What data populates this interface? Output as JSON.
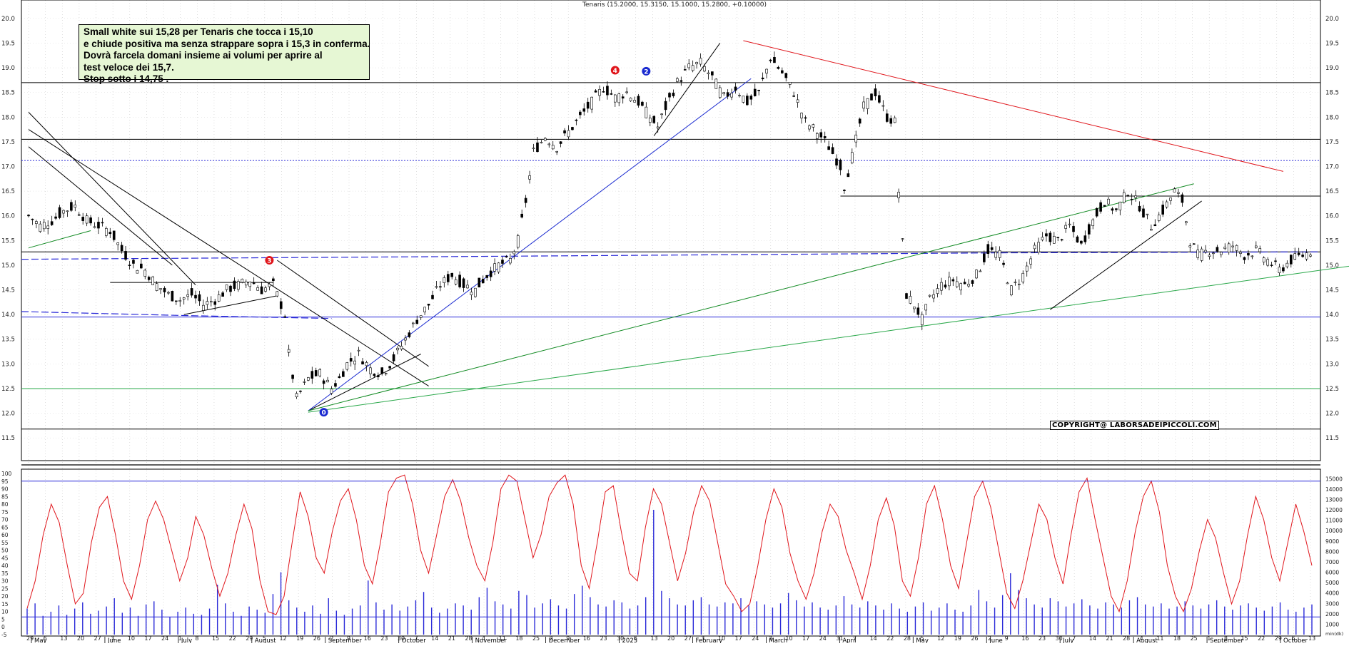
{
  "chart_data": [
    {
      "type": "candlestick",
      "title": "Tenaris (15.2000, 15.3150, 15.1000, 15.2800, +0.10000)",
      "y_ticks": [
        "20.0",
        "19.5",
        "19.0",
        "18.5",
        "18.0",
        "17.5",
        "17.0",
        "16.5",
        "16.0",
        "15.5",
        "15.0",
        "14.5",
        "14.0",
        "13.5",
        "13.0",
        "12.5",
        "12.0",
        "11.5"
      ],
      "ylim": [
        11.3,
        20.2
      ],
      "x_labels": [
        "May",
        "June",
        "July",
        "August",
        "September",
        "October",
        "November",
        "December",
        "2025",
        "February",
        "March",
        "April",
        "May",
        "June",
        "July",
        "August",
        "September",
        "October"
      ],
      "x_day_ticks": [
        "29",
        "6",
        "13",
        "20",
        "27",
        "3",
        "10",
        "17",
        "24",
        "1",
        "8",
        "15",
        "22",
        "29",
        "5",
        "12",
        "19",
        "26",
        "2",
        "9",
        "16",
        "23",
        "30",
        "7",
        "14",
        "21",
        "28",
        "4",
        "11",
        "18",
        "25",
        "2",
        "9",
        "16",
        "23",
        "30",
        "6",
        "13",
        "20",
        "27",
        "3",
        "10",
        "17",
        "24",
        "3",
        "10",
        "17",
        "24",
        "31",
        "7",
        "14",
        "22",
        "28",
        "5",
        "12",
        "19",
        "26",
        "2",
        "9",
        "16",
        "23",
        "30",
        "7",
        "14",
        "21",
        "28",
        "4",
        "11",
        "18",
        "25",
        "1",
        "8",
        "15",
        "22",
        "29",
        "6",
        "13"
      ],
      "close_path": [
        [
          0,
          16.0
        ],
        [
          3,
          15.8
        ],
        [
          6,
          15.9
        ],
        [
          9,
          16.1
        ],
        [
          12,
          16.2
        ],
        [
          15,
          15.9
        ],
        [
          18,
          15.8
        ],
        [
          21,
          15.7
        ],
        [
          24,
          15.3
        ],
        [
          27,
          15.0
        ],
        [
          30,
          14.9
        ],
        [
          33,
          14.6
        ],
        [
          36,
          14.4
        ],
        [
          39,
          14.3
        ],
        [
          42,
          14.4
        ],
        [
          45,
          14.2
        ],
        [
          48,
          14.3
        ],
        [
          51,
          14.5
        ],
        [
          54,
          14.6
        ],
        [
          57,
          14.7
        ],
        [
          60,
          14.5
        ],
        [
          63,
          14.6
        ],
        [
          66,
          14.0
        ],
        [
          67,
          13.2
        ],
        [
          69,
          12.3
        ],
        [
          72,
          12.7
        ],
        [
          75,
          12.8
        ],
        [
          78,
          12.5
        ],
        [
          80,
          12.7
        ],
        [
          82,
          13.0
        ],
        [
          85,
          13.2
        ],
        [
          88,
          12.9
        ],
        [
          91,
          12.8
        ],
        [
          94,
          13.1
        ],
        [
          97,
          13.5
        ],
        [
          100,
          13.9
        ],
        [
          103,
          14.2
        ],
        [
          106,
          14.6
        ],
        [
          109,
          14.8
        ],
        [
          112,
          14.6
        ],
        [
          115,
          14.5
        ],
        [
          118,
          14.8
        ],
        [
          121,
          15.0
        ],
        [
          124,
          15.1
        ],
        [
          126,
          15.5
        ],
        [
          128,
          16.3
        ],
        [
          130,
          17.3
        ],
        [
          133,
          17.6
        ],
        [
          136,
          17.4
        ],
        [
          139,
          17.7
        ],
        [
          142,
          18.0
        ],
        [
          145,
          18.3
        ],
        [
          148,
          18.6
        ],
        [
          151,
          18.4
        ],
        [
          154,
          18.5
        ],
        [
          157,
          18.3
        ],
        [
          160,
          18.0
        ],
        [
          162,
          17.8
        ],
        [
          164,
          18.2
        ],
        [
          167,
          18.7
        ],
        [
          170,
          19.0
        ],
        [
          173,
          19.1
        ],
        [
          176,
          18.8
        ],
        [
          179,
          18.4
        ],
        [
          182,
          18.6
        ],
        [
          185,
          18.3
        ],
        [
          188,
          18.5
        ],
        [
          191,
          19.2
        ],
        [
          194,
          18.9
        ],
        [
          197,
          18.5
        ],
        [
          200,
          17.9
        ],
        [
          203,
          17.7
        ],
        [
          206,
          17.4
        ],
        [
          209,
          17.0
        ],
        [
          210,
          16.6
        ],
        [
          212,
          17.2
        ],
        [
          215,
          18.2
        ],
        [
          218,
          18.5
        ],
        [
          221,
          18.0
        ],
        [
          223,
          17.9
        ],
        [
          224,
          16.5
        ],
        [
          226,
          14.4
        ],
        [
          228,
          14.2
        ],
        [
          230,
          13.9
        ],
        [
          232,
          14.3
        ],
        [
          235,
          14.6
        ],
        [
          238,
          14.7
        ],
        [
          241,
          14.6
        ],
        [
          244,
          14.8
        ],
        [
          247,
          15.3
        ],
        [
          250,
          15.2
        ],
        [
          253,
          14.5
        ],
        [
          256,
          14.8
        ],
        [
          259,
          15.3
        ],
        [
          262,
          15.6
        ],
        [
          265,
          15.5
        ],
        [
          268,
          15.8
        ],
        [
          271,
          15.4
        ],
        [
          274,
          15.9
        ],
        [
          277,
          16.3
        ],
        [
          280,
          16.1
        ],
        [
          283,
          16.5
        ],
        [
          286,
          16.2
        ],
        [
          289,
          15.8
        ],
        [
          292,
          16.1
        ],
        [
          295,
          16.5
        ],
        [
          297,
          16.3
        ],
        [
          299,
          15.5
        ],
        [
          301,
          15.2
        ],
        [
          304,
          15.3
        ],
        [
          307,
          15.3
        ],
        [
          310,
          15.4
        ],
        [
          313,
          15.2
        ],
        [
          316,
          15.3
        ],
        [
          319,
          15.1
        ],
        [
          322,
          14.9
        ],
        [
          325,
          15.1
        ],
        [
          328,
          15.2
        ],
        [
          330,
          15.28
        ]
      ],
      "n_bars": 330,
      "oscillator": {
        "y_ticks": [
          "100",
          "95",
          "90",
          "85",
          "80",
          "75",
          "70",
          "65",
          "60",
          "55",
          "50",
          "45",
          "40",
          "35",
          "30",
          "25",
          "20",
          "15",
          "10",
          "5",
          "0",
          "-5"
        ],
        "ylim": [
          -5,
          100
        ],
        "reference_level": 95,
        "color": "#e0161c",
        "values": [
          12,
          30,
          60,
          80,
          68,
          40,
          15,
          22,
          55,
          78,
          85,
          60,
          30,
          18,
          40,
          70,
          82,
          70,
          50,
          30,
          45,
          72,
          60,
          38,
          20,
          35,
          60,
          80,
          64,
          30,
          10,
          8,
          20,
          55,
          88,
          72,
          45,
          35,
          62,
          82,
          90,
          70,
          40,
          28,
          55,
          88,
          97,
          99,
          80,
          50,
          35,
          60,
          85,
          96,
          82,
          58,
          40,
          30,
          55,
          90,
          99,
          95,
          70,
          45,
          60,
          85,
          94,
          99,
          80,
          40,
          25,
          55,
          88,
          92,
          62,
          35,
          30,
          65,
          90,
          80,
          55,
          30,
          48,
          75,
          92,
          82,
          55,
          28,
          20,
          10,
          15,
          40,
          70,
          90,
          78,
          48,
          30,
          18,
          35,
          62,
          80,
          72,
          50,
          35,
          18,
          40,
          70,
          84,
          66,
          30,
          20,
          45,
          80,
          92,
          70,
          40,
          25,
          55,
          85,
          95,
          78,
          50,
          22,
          12,
          30,
          55,
          80,
          70,
          45,
          28,
          60,
          88,
          97,
          70,
          45,
          20,
          10,
          30,
          62,
          85,
          95,
          75,
          40,
          20,
          10,
          25,
          50,
          70,
          58,
          35,
          15,
          30,
          60,
          85,
          70,
          45,
          30,
          55,
          80,
          62,
          40
        ]
      },
      "volume": {
        "y_ticks": [
          "15000",
          "14000",
          "13000",
          "12000",
          "11000",
          "10000",
          "9000",
          "8000",
          "7000",
          "6000",
          "5000",
          "4000",
          "3000",
          "2000",
          "1000"
        ],
        "ylim": [
          0,
          15500
        ],
        "reference_level": 14500,
        "color": "#2a2ad8",
        "values": [
          2500,
          3000,
          1800,
          2200,
          2800,
          1900,
          2500,
          3100,
          2000,
          2300,
          2700,
          3500,
          2100,
          2600,
          1800,
          2900,
          3200,
          2400,
          1700,
          2200,
          2600,
          2000,
          1900,
          2500,
          4800,
          3000,
          2200,
          1800,
          2700,
          2400,
          2100,
          3900,
          6000,
          3300,
          2600,
          2200,
          2800,
          2000,
          3500,
          2300,
          1900,
          2500,
          2800,
          5200,
          3100,
          2400,
          2900,
          2300,
          2700,
          3300,
          4100,
          2600,
          2100,
          2500,
          3000,
          2800,
          2400,
          3600,
          4500,
          3200,
          2900,
          2500,
          4200,
          3800,
          2600,
          3000,
          3400,
          2800,
          2500,
          3900,
          4700,
          3600,
          2900,
          2700,
          3300,
          3100,
          2500,
          2800,
          3600,
          12000,
          4200,
          3500,
          2900,
          2800,
          3300,
          3600,
          2900,
          2700,
          3100,
          3000,
          3500,
          2800,
          3200,
          2900,
          2600,
          3000,
          4000,
          3300,
          2700,
          3100,
          2600,
          2400,
          2800,
          3700,
          2900,
          2600,
          3200,
          2800,
          2400,
          3000,
          2500,
          2200,
          2700,
          3100,
          2300,
          2600,
          3000,
          2400,
          2200,
          2800,
          4300,
          3200,
          2600,
          3800,
          5900,
          4300,
          3500,
          2900,
          2600,
          3500,
          3200,
          2700,
          3000,
          3400,
          2800,
          2500,
          3100,
          2900,
          2600,
          3300,
          3600,
          2900,
          2700,
          3000,
          2500,
          2700,
          3200,
          2800,
          2500,
          2900,
          3300,
          2700,
          2400,
          2800,
          3000,
          2600,
          2300,
          2700,
          3100,
          2400,
          2200,
          2600,
          2900
        ]
      },
      "level_lines": [
        18.7,
        17.55,
        17.12,
        16.4,
        15.27,
        13.95,
        12.5,
        11.68
      ],
      "annotations": [
        {
          "label": "4",
          "x": 151,
          "y": 18.95,
          "color": "#e0161c"
        },
        {
          "label": "2",
          "x": 159,
          "y": 18.93,
          "color": "#1a2ad0"
        },
        {
          "label": "3",
          "x": 62,
          "y": 15.1,
          "color": "#e0161c"
        },
        {
          "label": "0",
          "x": 76,
          "y": 12.02,
          "color": "#1a2ad0"
        }
      ],
      "note": {
        "lines": [
          "Small white sui 15,28 per Tenaris che tocca i 15,10",
          "e chiude positiva ma senza strappare sopra i 15,3 in conferma.",
          "Dovrà farcela domani insieme ai volumi per aprire al",
          "test veloce dei 15,7.",
          "Stop sotto i 14,75 ."
        ]
      },
      "copyright": "COPYRIGHT@ LABORSADEIPICCOLI.COM",
      "volume_axis_footer": "min(dk)"
    }
  ]
}
